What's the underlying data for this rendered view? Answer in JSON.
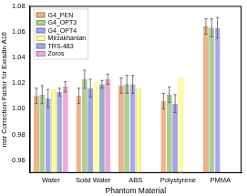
{
  "chart_data": {
    "type": "bar",
    "x_label": "Phantom Material",
    "y_label": "msr Correction Factor for Exradin A16",
    "categories": [
      "Water",
      "Solid Water",
      "ABS",
      "Polystyrene",
      "PMMA"
    ],
    "series": [
      {
        "name": "G4_PEN",
        "color": "#f4b183",
        "values": [
          1.01,
          1.01,
          1.018,
          1.006,
          1.064
        ],
        "errors": [
          0.006,
          0.006,
          0.006,
          0.006,
          0.006
        ]
      },
      {
        "name": "G4_OPT3",
        "color": "#a9d18e",
        "values": [
          1.011,
          1.023,
          1.019,
          1.011,
          1.063
        ],
        "errors": [
          0.007,
          0.007,
          0.007,
          0.006,
          0.007
        ]
      },
      {
        "name": "G4_OPT4",
        "color": "#a4a4ec",
        "values": [
          1.008,
          1.016,
          1.019,
          1.004,
          1.063
        ],
        "errors": [
          0.007,
          0.007,
          0.007,
          0.007,
          0.008
        ]
      },
      {
        "name": "Mirzakhanian",
        "color": "#ffff99",
        "values": [
          1.015,
          1.021,
          1.016,
          1.024,
          null
        ],
        "errors": [
          null,
          null,
          null,
          null,
          null
        ]
      },
      {
        "name": "TRS-483",
        "color": "#9dabd9",
        "values": [
          1.013,
          1.019,
          null,
          null,
          null
        ],
        "errors": [
          0.003,
          0.003,
          null,
          null,
          null
        ]
      },
      {
        "name": "Zoros",
        "color": "#f4a6d7",
        "values": [
          1.017,
          1.023,
          null,
          null,
          null
        ],
        "errors": [
          0.004,
          0.004,
          null,
          null,
          null
        ]
      }
    ],
    "ylim": [
      0.95,
      1.08
    ],
    "yticks": [
      0.96,
      0.98,
      {
        "value": 1,
        "label": "1.00"
      },
      1.02,
      1.04,
      1.06,
      1.08
    ],
    "grid": false,
    "legend": "upper left"
  }
}
